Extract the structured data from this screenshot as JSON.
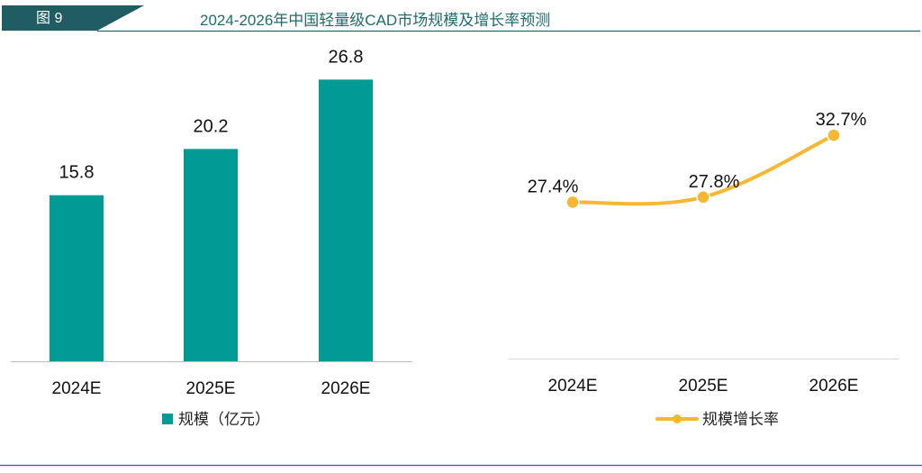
{
  "header": {
    "figure_label": "图 9",
    "title": "2024-2026年中国轻量级CAD市场规模及增长率预测",
    "colors": {
      "dark": "#1f5d63",
      "accent": "#1f6b6e"
    }
  },
  "chart_data": [
    {
      "type": "bar",
      "categories": [
        "2024E",
        "2025E",
        "2026E"
      ],
      "values": [
        15.8,
        20.2,
        26.8
      ],
      "value_labels": [
        "15.8",
        "20.2",
        "26.8"
      ],
      "legend": "规模（亿元）",
      "legend_position": "bottom",
      "color": "#009b94",
      "ylim": [
        0,
        30
      ],
      "grid": false
    },
    {
      "type": "line",
      "categories": [
        "2024E",
        "2025E",
        "2026E"
      ],
      "values": [
        27.4,
        27.8,
        32.7
      ],
      "value_labels": [
        "27.4%",
        "27.8%",
        "32.7%"
      ],
      "legend": "规模增长率",
      "legend_position": "bottom",
      "color": "#f7b731",
      "ylim": [
        15,
        40
      ],
      "grid": false,
      "smooth": true
    }
  ]
}
